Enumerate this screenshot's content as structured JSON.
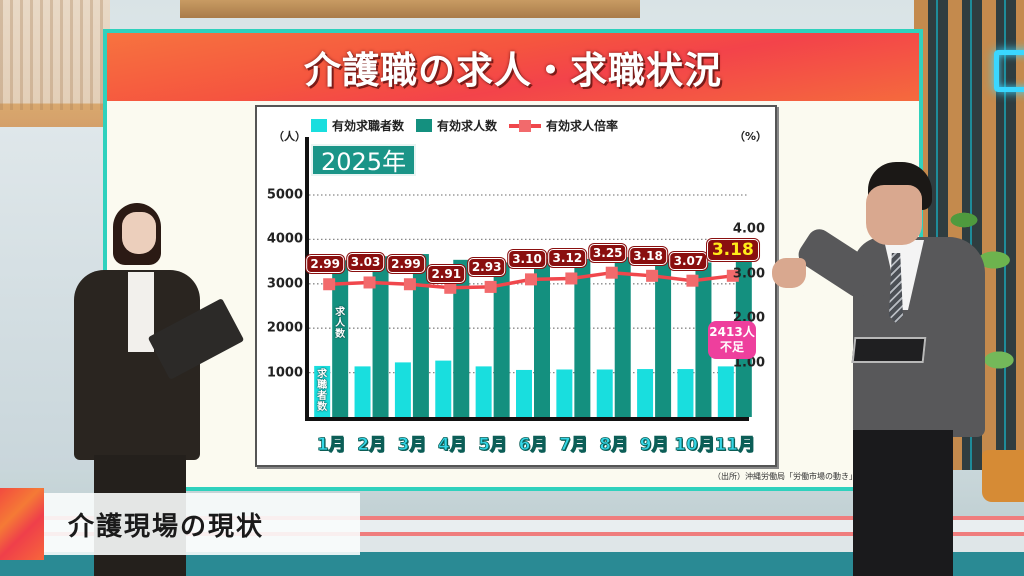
{
  "board": {
    "title": "介護職の求人・求職状況"
  },
  "lower_third": {
    "caption": "介護現場の現状"
  },
  "colors": {
    "job_seekers": "#19dede",
    "job_openings": "#14907f",
    "ratio_line": "#f0474c",
    "ratio_marker": "#f26a6c",
    "ratio_label_bg": "#8a0f0f",
    "latest_ratio_text": "#ffec1a",
    "callout_bg": "#ee3f9d",
    "board_border": "#2fd1bd",
    "header_red": "#f3434a"
  },
  "chart": {
    "legend": [
      {
        "label": "有効求職者数",
        "type": "bar",
        "color": "#19dede"
      },
      {
        "label": "有効求人数",
        "type": "bar",
        "color": "#14907f"
      },
      {
        "label": "有効求人倍率",
        "type": "line",
        "color": "#f0474c"
      }
    ],
    "year_badge": "2025年",
    "left_unit": "（人）",
    "right_unit": "（%）",
    "left_ticks": [
      "5000",
      "4000",
      "3000",
      "2000",
      "1000"
    ],
    "right_ticks": [
      "4.00",
      "3.00",
      "2.00",
      "1.00"
    ],
    "bar_label_openings": "求人数",
    "bar_label_seekers": "求職者数",
    "callout": {
      "line1": "2413人",
      "line2": "不足"
    },
    "source": "（出所）沖縄労働局「労働市場の動き」"
  },
  "chart_data": {
    "type": "bar",
    "title": "介護職の求人・求職状況",
    "subtitle": "2025年",
    "categories": [
      "1月",
      "2月",
      "3月",
      "4月",
      "5月",
      "6月",
      "7月",
      "8月",
      "9月",
      "10月",
      "11月"
    ],
    "series": [
      {
        "name": "有効求職者数",
        "type": "bar",
        "axis": "left",
        "values": [
          1150,
          1140,
          1230,
          1270,
          1140,
          1060,
          1070,
          1070,
          1080,
          1080,
          1140
        ]
      },
      {
        "name": "有効求人数",
        "type": "bar",
        "axis": "left",
        "values": [
          3530,
          3620,
          3670,
          3540,
          3480,
          3560,
          3560,
          3600,
          3560,
          3480,
          3550
        ]
      },
      {
        "name": "有効求人倍率",
        "type": "line",
        "axis": "right",
        "values": [
          2.99,
          3.03,
          2.99,
          2.91,
          2.93,
          3.1,
          3.12,
          3.25,
          3.18,
          3.07,
          3.18
        ]
      }
    ],
    "ratio_labels": [
      "2.99",
      "3.03",
      "2.99",
      "2.91",
      "2.93",
      "3.10",
      "3.12",
      "3.25",
      "3.18",
      "3.07",
      "3.18"
    ],
    "xlabel": "",
    "ylabel_left": "（人）",
    "ylabel_right": "（%）",
    "ylim_left": [
      0,
      5000
    ],
    "ylim_right": [
      0,
      4.0
    ],
    "left_ticks": [
      1000,
      2000,
      3000,
      4000,
      5000
    ],
    "right_ticks": [
      1.0,
      2.0,
      3.0,
      4.0
    ],
    "grid": "dotted horizontal",
    "legend_position": "top",
    "annotations": [
      "2413人 不足",
      "求人数",
      "求職者数"
    ],
    "source": "（出所）沖縄労働局「労働市場の動き」"
  }
}
